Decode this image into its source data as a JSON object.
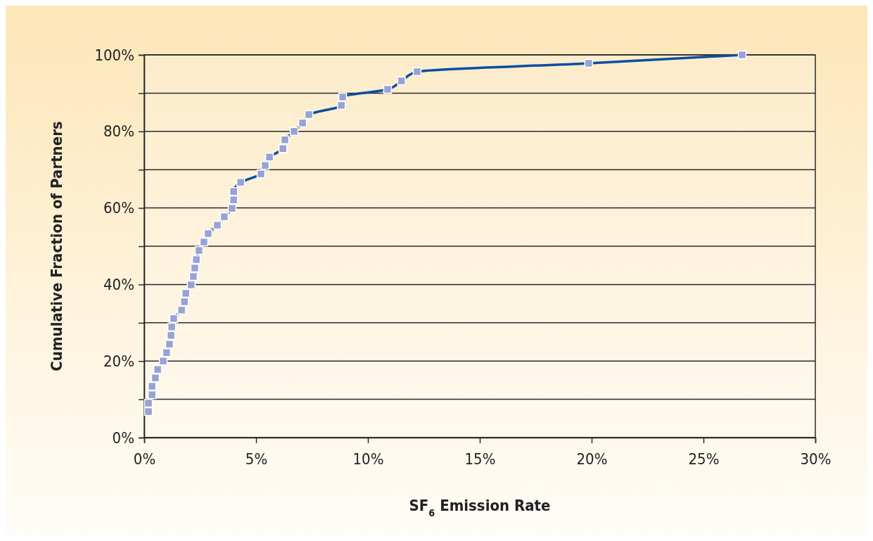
{
  "chart_data": {
    "type": "line",
    "xlabel": "SF$_{6}$ Emission Rate",
    "ylabel": "Cumulative Fraction of Partners",
    "xlim": [
      0,
      30
    ],
    "ylim": [
      0,
      100
    ],
    "xticks": [
      {
        "value": 0,
        "label": "0%"
      },
      {
        "value": 5,
        "label": "5%"
      },
      {
        "value": 10,
        "label": "10%"
      },
      {
        "value": 15,
        "label": "15%"
      },
      {
        "value": 20,
        "label": "20%"
      },
      {
        "value": 25,
        "label": "25%"
      },
      {
        "value": 30,
        "label": "30%"
      }
    ],
    "yticks": [
      {
        "value": 0,
        "label": "0%"
      },
      {
        "value": 10,
        "label": null
      },
      {
        "value": 20,
        "label": "20%"
      },
      {
        "value": 30,
        "label": null
      },
      {
        "value": 40,
        "label": "40%"
      },
      {
        "value": 50,
        "label": null
      },
      {
        "value": 60,
        "label": "60%"
      },
      {
        "value": 70,
        "label": null
      },
      {
        "value": 80,
        "label": "80%"
      },
      {
        "value": 90,
        "label": null
      },
      {
        "value": 100,
        "label": "100%"
      }
    ],
    "grid": "y",
    "marker": "square",
    "line_style": "solid",
    "series": [
      {
        "color": "#0a4fa0",
        "x": [
          0.19,
          0.19,
          0.35,
          0.35,
          0.5,
          0.6,
          0.85,
          1.0,
          1.13,
          1.2,
          1.23,
          1.32,
          1.67,
          1.8,
          1.86,
          2.1,
          2.2,
          2.26,
          2.33,
          2.45,
          2.67,
          2.86,
          3.27,
          3.58,
          3.93,
          4.0,
          4.0,
          4.31,
          5.22,
          5.41,
          5.6,
          6.2,
          6.29,
          6.7,
          7.08,
          7.36,
          8.81,
          8.87,
          10.88,
          11.5,
          12.2,
          19.87,
          26.73
        ],
        "values": [
          6.8,
          9.0,
          11.2,
          13.4,
          15.6,
          17.8,
          20.0,
          22.2,
          24.4,
          26.7,
          28.9,
          31.1,
          33.3,
          35.5,
          37.7,
          39.9,
          42.1,
          44.3,
          46.5,
          48.9,
          51.1,
          53.3,
          55.5,
          57.7,
          59.9,
          62.1,
          64.3,
          66.7,
          68.9,
          71.1,
          73.3,
          75.5,
          77.8,
          80.0,
          82.2,
          84.4,
          86.8,
          89.0,
          91.0,
          93.2,
          95.6,
          97.8,
          100
        ]
      }
    ]
  }
}
